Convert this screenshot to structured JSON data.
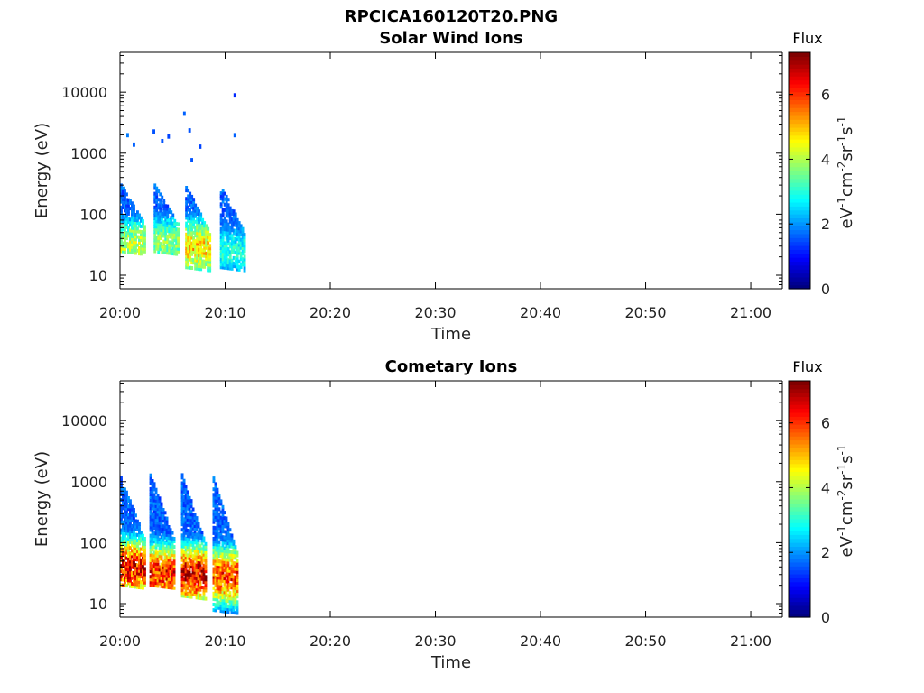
{
  "figure_title": "RPCICA160120T20.PNG",
  "chart_data": [
    {
      "type": "heatmap",
      "title": "Solar Wind Ions",
      "xlabel": "Time",
      "ylabel": "Energy (eV)",
      "x_range": [
        "20:00",
        "21:03"
      ],
      "y_range": [
        6,
        45000
      ],
      "y_scale": "log",
      "x_ticks": [
        "20:00",
        "20:10",
        "20:20",
        "20:30",
        "20:40",
        "20:50",
        "21:00"
      ],
      "y_ticks": [
        "10",
        "100",
        "1000",
        "10000"
      ],
      "colorbar": {
        "title": "Flux",
        "label": "eV-1cm-2sr-1s-1",
        "range": [
          0,
          7.3
        ],
        "ticks": [
          "0",
          "2",
          "4",
          "6"
        ],
        "colormap": "jet"
      },
      "grid": false,
      "bursts": [
        {
          "start_min": 0.0,
          "peak_flux": 4.4,
          "energy_range": [
            22,
            300
          ],
          "peak_energy": 32
        },
        {
          "start_min": 3.2,
          "peak_flux": 4.0,
          "energy_range": [
            22,
            320
          ],
          "peak_energy": 35
        },
        {
          "start_min": 6.2,
          "peak_flux": 5.2,
          "energy_range": [
            12,
            300
          ],
          "peak_energy": 28
        },
        {
          "start_min": 9.5,
          "peak_flux": 3.2,
          "energy_range": [
            12,
            300
          ],
          "peak_energy": 25
        }
      ],
      "sparse_points": [
        {
          "t_min": 0.6,
          "energy": 2000,
          "flux": 1.8
        },
        {
          "t_min": 1.2,
          "energy": 1400,
          "flux": 1.6
        },
        {
          "t_min": 3.1,
          "energy": 2300,
          "flux": 1.5
        },
        {
          "t_min": 3.9,
          "energy": 1600,
          "flux": 1.5
        },
        {
          "t_min": 4.5,
          "energy": 1900,
          "flux": 1.4
        },
        {
          "t_min": 6.0,
          "energy": 4500,
          "flux": 1.6
        },
        {
          "t_min": 6.5,
          "energy": 2400,
          "flux": 1.5
        },
        {
          "t_min": 6.7,
          "energy": 780,
          "flux": 1.5
        },
        {
          "t_min": 7.5,
          "energy": 1300,
          "flux": 1.4
        },
        {
          "t_min": 10.8,
          "energy": 9000,
          "flux": 1.2
        },
        {
          "t_min": 10.8,
          "energy": 2000,
          "flux": 1.6
        }
      ]
    },
    {
      "type": "heatmap",
      "title": "Cometary Ions",
      "xlabel": "Time",
      "ylabel": "Energy (eV)",
      "x_range": [
        "20:00",
        "21:03"
      ],
      "y_range": [
        6,
        45000
      ],
      "y_scale": "log",
      "x_ticks": [
        "20:00",
        "20:10",
        "20:20",
        "20:30",
        "20:40",
        "20:50",
        "21:00"
      ],
      "y_ticks": [
        "10",
        "100",
        "1000",
        "10000"
      ],
      "colorbar": {
        "title": "Flux",
        "label": "eV-1cm-2sr-1s-1",
        "range": [
          0,
          7.3
        ],
        "ticks": [
          "0",
          "2",
          "4",
          "6"
        ],
        "colormap": "jet"
      },
      "grid": false,
      "bursts": [
        {
          "start_min": 0.0,
          "peak_flux": 6.9,
          "energy_range": [
            18,
            1200
          ],
          "peak_energy": 38
        },
        {
          "start_min": 2.8,
          "peak_flux": 6.6,
          "energy_range": [
            18,
            1350
          ],
          "peak_energy": 32
        },
        {
          "start_min": 5.8,
          "peak_flux": 7.1,
          "energy_range": [
            12,
            1350
          ],
          "peak_energy": 30
        },
        {
          "start_min": 8.8,
          "peak_flux": 6.4,
          "energy_range": [
            7,
            1200
          ],
          "peak_energy": 28
        }
      ],
      "sparse_points": []
    }
  ]
}
